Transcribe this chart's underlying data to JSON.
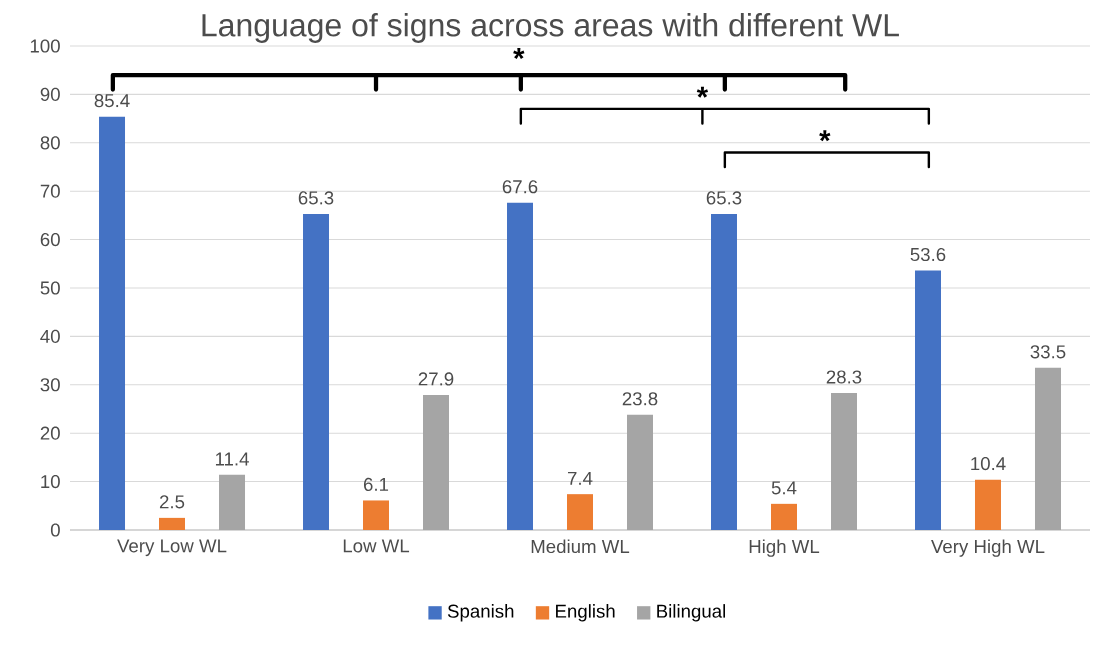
{
  "chart_data": {
    "type": "bar",
    "title": "Language of signs across areas with different WL",
    "categories": [
      "Very Low WL",
      "Low WL",
      "Medium WL",
      "High WL",
      "Very High WL"
    ],
    "series": [
      {
        "name": "Spanish",
        "color": "#4472c4",
        "values": [
          85.4,
          65.3,
          67.6,
          65.3,
          53.6
        ]
      },
      {
        "name": "English",
        "color": "#ed7d31",
        "values": [
          2.5,
          6.1,
          7.4,
          5.4,
          10.4
        ]
      },
      {
        "name": "Bilingual",
        "color": "#a5a5a5",
        "values": [
          11.4,
          27.9,
          23.8,
          28.3,
          33.5
        ]
      }
    ],
    "ylim": [
      0,
      100
    ],
    "yticks": [
      0,
      10,
      20,
      30,
      40,
      50,
      60,
      70,
      80,
      90,
      100
    ],
    "grid": "y",
    "legend": "bottom",
    "data_labels": true,
    "annotations": [
      "*",
      "*",
      "*"
    ]
  }
}
